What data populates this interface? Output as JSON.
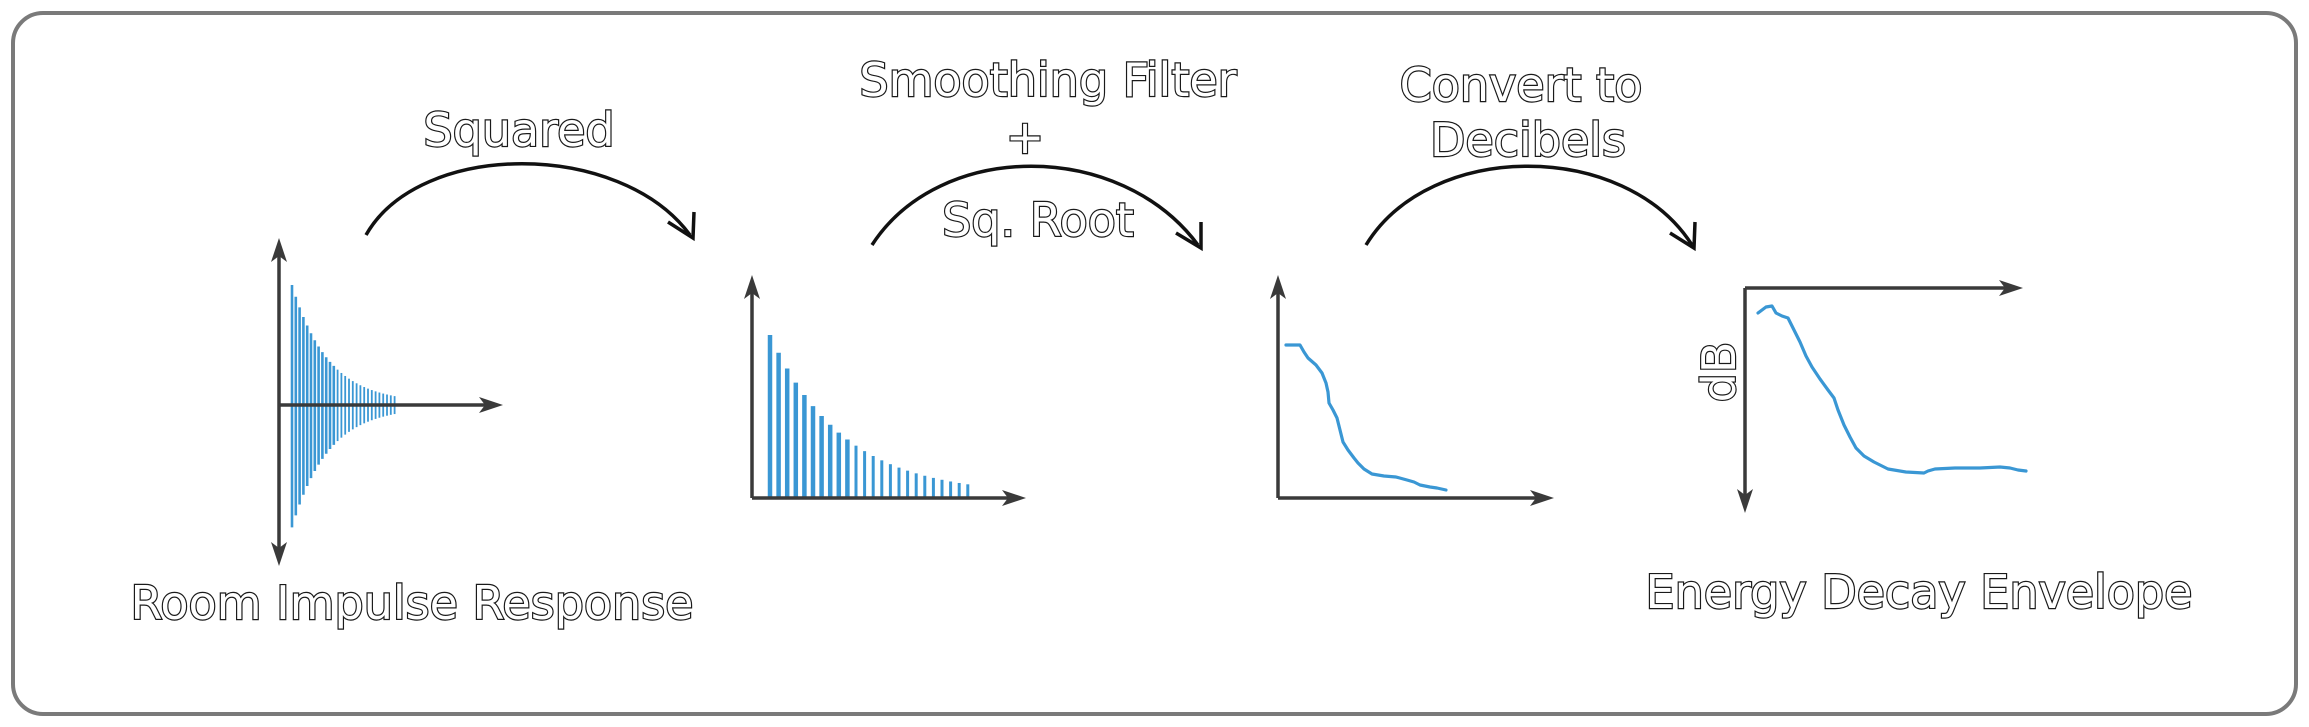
{
  "labels": {
    "rir": "Room Impulse Response",
    "squared": "Squared",
    "smoothing_line1": "Smoothing Filter",
    "smoothing_line2": "+",
    "smoothing_line3": "Sq. Root",
    "convert_line1": "Convert to",
    "convert_line2": "Decibels",
    "db_axis": "dB",
    "envelope": "Energy Decay Envelope"
  },
  "colors": {
    "signal": "#3a97d4",
    "axis": "#3a3a3a",
    "arrow": "#111111",
    "frame": "#7a7a7a"
  },
  "stages": [
    {
      "name": "room-impulse-response",
      "type": "bipolar-stems"
    },
    {
      "name": "squared-impulse",
      "type": "stems"
    },
    {
      "name": "smoothed-envelope",
      "type": "line"
    },
    {
      "name": "energy-decay-envelope",
      "type": "line",
      "y_axis": "dB"
    }
  ]
}
